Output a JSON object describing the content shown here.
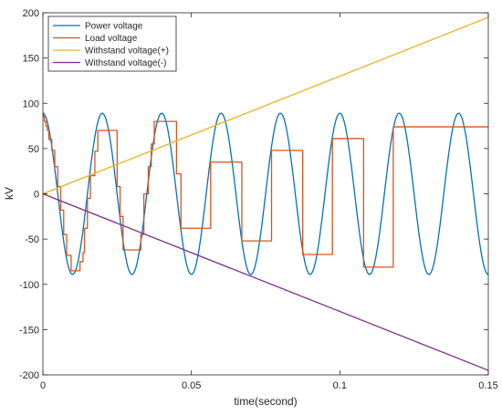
{
  "chart_data": {
    "type": "line",
    "title": "",
    "xlabel": "time(second)",
    "ylabel": "kV",
    "xlim": [
      0,
      0.15
    ],
    "ylim": [
      -200,
      200
    ],
    "x_ticks": [
      0,
      0.05,
      0.1,
      0.15
    ],
    "x_tick_labels": [
      "0",
      "0.05",
      "0.1",
      "0.15"
    ],
    "y_ticks": [
      -200,
      -150,
      -100,
      -50,
      0,
      50,
      100,
      150,
      200
    ],
    "y_tick_labels": [
      "-200",
      "-150",
      "-100",
      "-50",
      "0",
      "50",
      "100",
      "150",
      "200"
    ],
    "grid": false,
    "legend_position": "top-left",
    "series": [
      {
        "name": "Power voltage",
        "color": "#0072BD",
        "function": "cosine",
        "amplitude": 89,
        "frequency_hz": 50
      },
      {
        "name": "Load voltage",
        "color": "#D95319",
        "style": "step",
        "points": [
          [
            0,
            89
          ],
          [
            0.0002,
            85
          ],
          [
            0.0005,
            80
          ],
          [
            0.001,
            75
          ],
          [
            0.0015,
            70
          ],
          [
            0.002,
            60
          ],
          [
            0.003,
            48
          ],
          [
            0.004,
            30
          ],
          [
            0.005,
            8
          ],
          [
            0.006,
            -18
          ],
          [
            0.007,
            -45
          ],
          [
            0.008,
            -68
          ],
          [
            0.0095,
            -85
          ],
          [
            0.0115,
            -85
          ],
          [
            0.0125,
            -75
          ],
          [
            0.0135,
            -65
          ],
          [
            0.014,
            -38
          ],
          [
            0.015,
            -5
          ],
          [
            0.016,
            20
          ],
          [
            0.0175,
            47
          ],
          [
            0.0185,
            70
          ],
          [
            0.0245,
            70
          ],
          [
            0.025,
            8
          ],
          [
            0.026,
            -25
          ],
          [
            0.027,
            -62
          ],
          [
            0.0325,
            -62
          ],
          [
            0.033,
            -45
          ],
          [
            0.034,
            0
          ],
          [
            0.0355,
            30
          ],
          [
            0.0365,
            55
          ],
          [
            0.0375,
            80
          ],
          [
            0.0445,
            80
          ],
          [
            0.045,
            22
          ],
          [
            0.0465,
            -38
          ],
          [
            0.056,
            -38
          ],
          [
            0.0565,
            35
          ],
          [
            0.0665,
            35
          ],
          [
            0.067,
            -52
          ],
          [
            0.0765,
            -52
          ],
          [
            0.077,
            48
          ],
          [
            0.087,
            48
          ],
          [
            0.0875,
            -67
          ],
          [
            0.097,
            -67
          ],
          [
            0.0975,
            61
          ],
          [
            0.1075,
            61
          ],
          [
            0.108,
            -81
          ],
          [
            0.1175,
            -81
          ],
          [
            0.118,
            74
          ],
          [
            0.15,
            74
          ]
        ]
      },
      {
        "name": "Withstand voltage(+)",
        "color": "#EDB120",
        "function": "linear",
        "x": [
          0,
          0.15
        ],
        "values": [
          0,
          195
        ]
      },
      {
        "name": "Withstand voltage(-)",
        "color": "#7E2F8E",
        "function": "linear",
        "x": [
          0,
          0.15
        ],
        "values": [
          0,
          -195
        ]
      }
    ]
  }
}
